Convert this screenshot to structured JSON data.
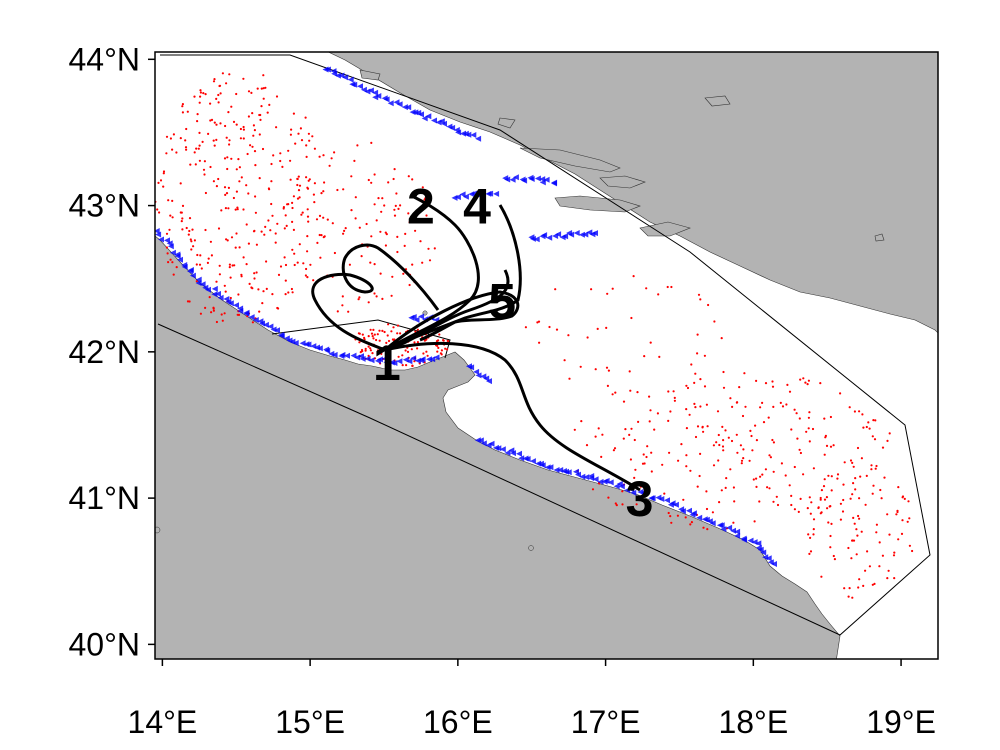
{
  "map": {
    "lat_ticks": [
      {
        "deg": 44,
        "label": "44°N"
      },
      {
        "deg": 43,
        "label": "43°N"
      },
      {
        "deg": 42,
        "label": "42°N"
      },
      {
        "deg": 41,
        "label": "41°N"
      },
      {
        "deg": 40,
        "label": "40°N"
      }
    ],
    "lon_ticks": [
      {
        "deg": 14,
        "label": "14°E"
      },
      {
        "deg": 15,
        "label": "15°E"
      },
      {
        "deg": 16,
        "label": "16°E"
      },
      {
        "deg": 17,
        "label": "17°E"
      },
      {
        "deg": 18,
        "label": "18°E"
      },
      {
        "deg": 19,
        "label": "19°E"
      }
    ],
    "lon_range": [
      13.95,
      19.25
    ],
    "lat_range": [
      39.9,
      44.05
    ],
    "land_color": "#b3b3b3",
    "sea_color": "#ffffff",
    "point_color": "#ff0000",
    "marker_color": "#0000ff",
    "track_color": "#000000",
    "track_labels": [
      {
        "text": "1",
        "lon": 15.52,
        "lat": 41.93
      },
      {
        "text": "2",
        "lon": 15.75,
        "lat": 43.0
      },
      {
        "text": "4",
        "lon": 16.13,
        "lat": 43.0
      },
      {
        "text": "5",
        "lon": 16.3,
        "lat": 42.35
      },
      {
        "text": "3",
        "lon": 17.23,
        "lat": 41.0
      }
    ]
  }
}
